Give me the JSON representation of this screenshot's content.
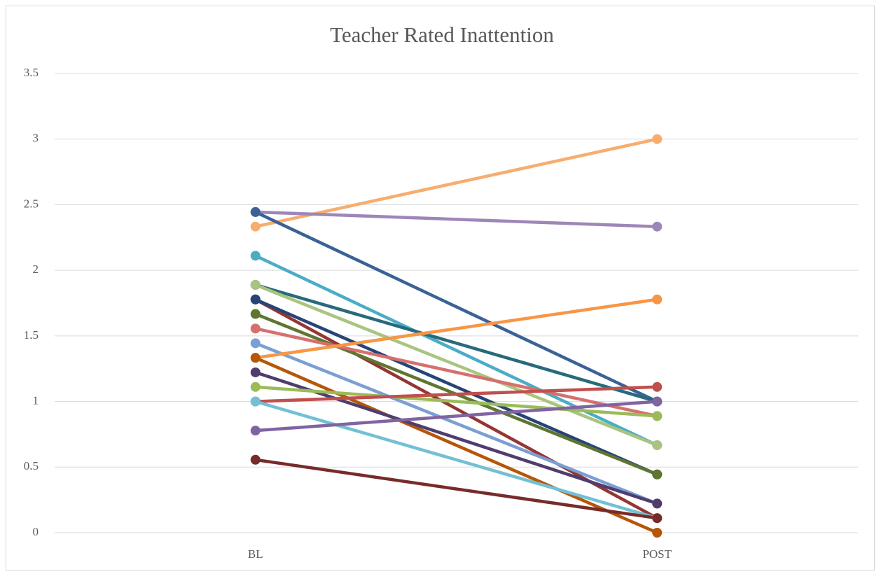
{
  "chart_data": {
    "type": "line",
    "title": "Teacher Rated Inattention",
    "categories": [
      "BL",
      "POST"
    ],
    "ylim": [
      0,
      3.5
    ],
    "yticks": [
      0,
      0.5,
      1,
      1.5,
      2,
      2.5,
      3,
      3.5
    ],
    "grid": true,
    "series": [
      {
        "color": "#f7ad6f",
        "values": [
          2.333,
          3.0
        ]
      },
      {
        "color": "#9e86b9",
        "values": [
          2.444,
          2.333
        ]
      },
      {
        "color": "#3a6296",
        "values": [
          2.444,
          1.0
        ]
      },
      {
        "color": "#4bacc6",
        "values": [
          2.111,
          0.667
        ]
      },
      {
        "color": "#276a7c",
        "values": [
          1.889,
          1.0
        ]
      },
      {
        "color": "#a9c47f",
        "values": [
          1.889,
          0.667
        ]
      },
      {
        "color": "#943634",
        "values": [
          1.778,
          0.111
        ]
      },
      {
        "color": "#264478",
        "values": [
          1.778,
          0.444
        ]
      },
      {
        "color": "#5f7530",
        "values": [
          1.667,
          0.444
        ]
      },
      {
        "color": "#d6706e",
        "values": [
          1.556,
          0.889
        ]
      },
      {
        "color": "#7a9fd3",
        "values": [
          1.444,
          0.222
        ]
      },
      {
        "color": "#f79646",
        "values": [
          1.333,
          1.778
        ]
      },
      {
        "color": "#b65708",
        "values": [
          1.333,
          0.0
        ]
      },
      {
        "color": "#4f3d6e",
        "values": [
          1.222,
          0.222
        ]
      },
      {
        "color": "#9bbb59",
        "values": [
          1.111,
          0.889
        ]
      },
      {
        "color": "#c0504d",
        "values": [
          1.0,
          1.111
        ]
      },
      {
        "color": "#72c0d4",
        "values": [
          1.0,
          0.111
        ]
      },
      {
        "color": "#8064a2",
        "values": [
          0.778,
          1.0
        ]
      },
      {
        "color": "#772c2a",
        "values": [
          0.556,
          0.111
        ]
      }
    ]
  }
}
